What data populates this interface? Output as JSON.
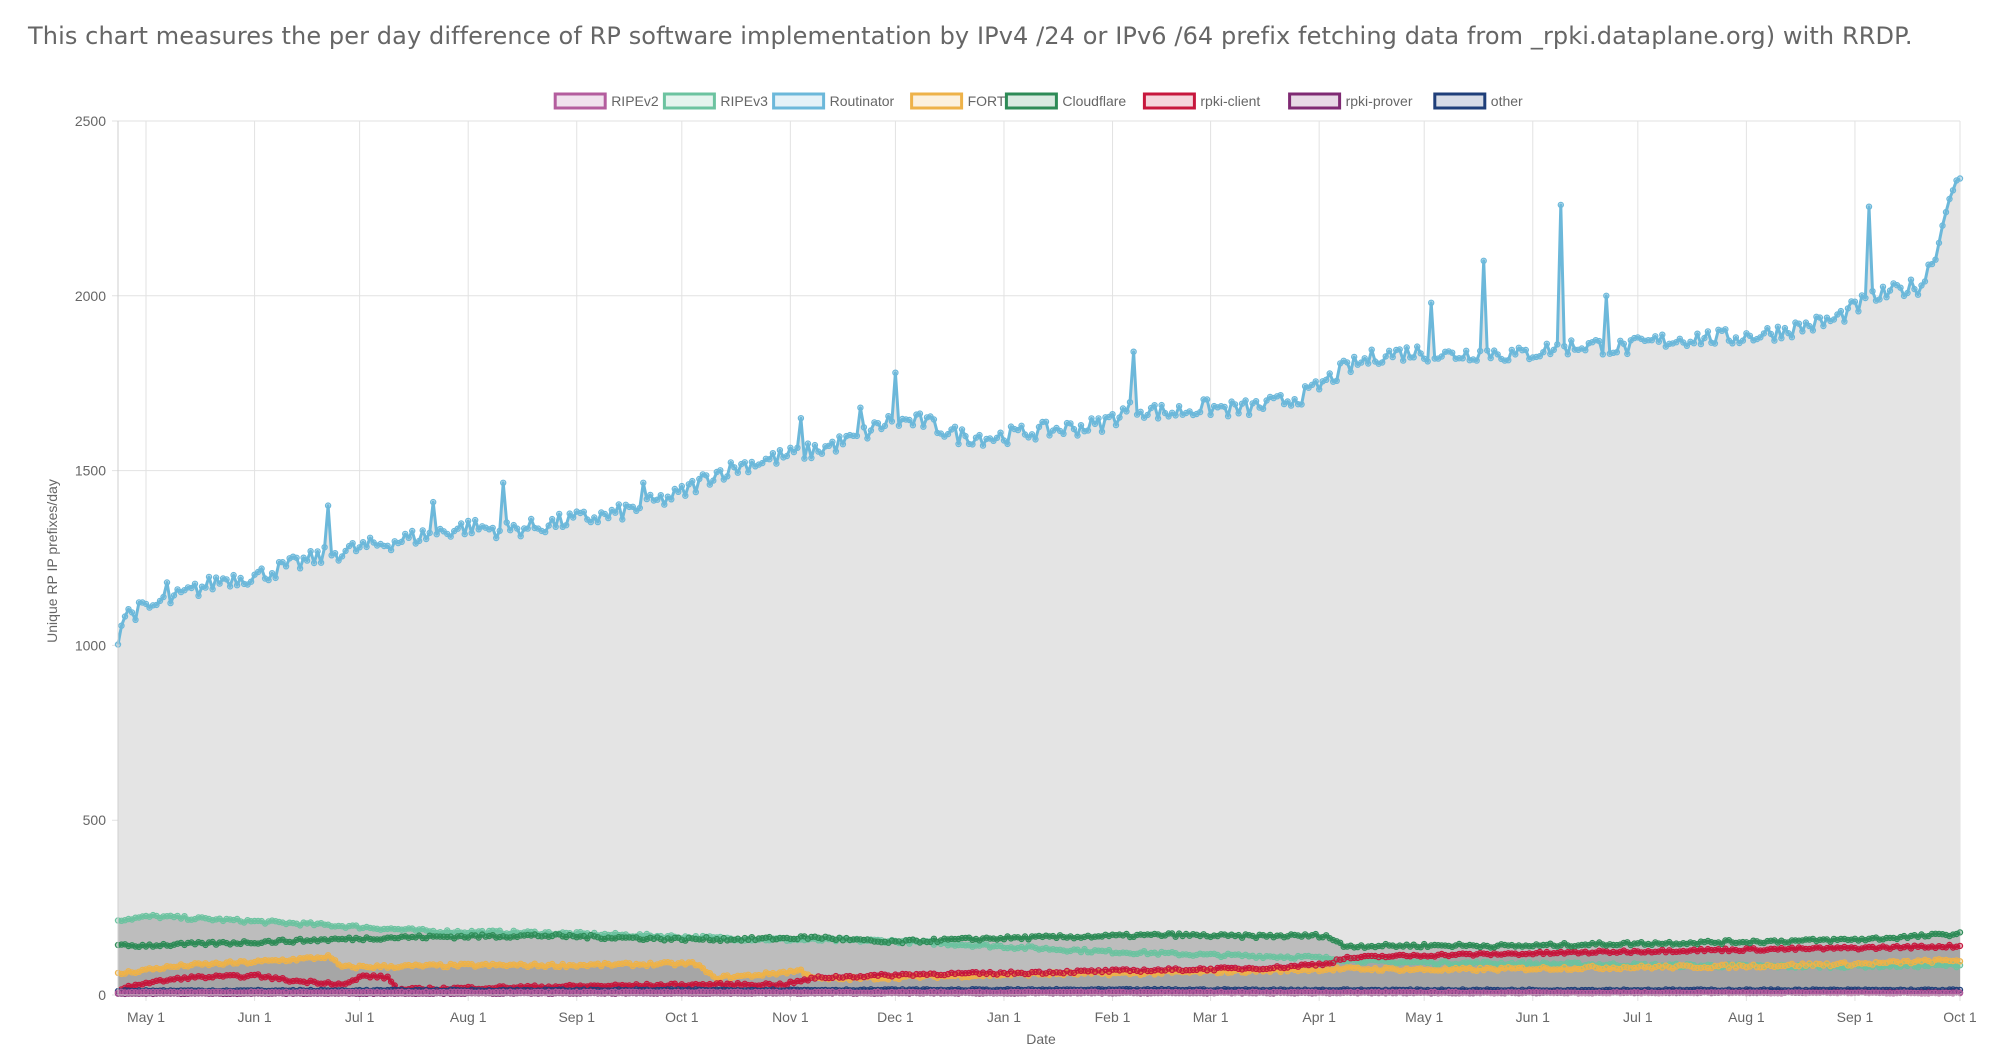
{
  "caption": "This chart measures the per day difference of RP software implementation by IPv4 /24 or IPv6 /64 prefix fetching data from _rpki.dataplane.org) with RRDP.",
  "chart_data": {
    "type": "area",
    "xlabel": "Date",
    "ylabel": "Unique RP IP prefixes/day",
    "ylim": [
      0,
      2500
    ],
    "yticks": [
      "0",
      "500",
      "1000",
      "1500",
      "2000",
      "2500"
    ],
    "xticks": [
      {
        "label": "May 1",
        "day": 8
      },
      {
        "label": "Jun 1",
        "day": 39
      },
      {
        "label": "Jul 1",
        "day": 69
      },
      {
        "label": "Aug 1",
        "day": 100
      },
      {
        "label": "Sep 1",
        "day": 131
      },
      {
        "label": "Oct 1",
        "day": 161
      },
      {
        "label": "Nov 1",
        "day": 192
      },
      {
        "label": "Dec 1",
        "day": 222
      },
      {
        "label": "Jan 1",
        "day": 253
      },
      {
        "label": "Feb 1",
        "day": 284
      },
      {
        "label": "Mar 1",
        "day": 312
      },
      {
        "label": "Apr 1",
        "day": 343
      },
      {
        "label": "May 1",
        "day": 373
      },
      {
        "label": "Jun 1",
        "day": 404
      },
      {
        "label": "Jul 1",
        "day": 434
      },
      {
        "label": "Aug 1",
        "day": 465
      },
      {
        "label": "Sep 1",
        "day": 496
      },
      {
        "label": "Oct 1",
        "day": 526
      }
    ],
    "x_day_range": [
      0,
      526
    ],
    "grid": true,
    "legend_position": "top-center",
    "area_fill_colors": [
      "#e4e4e4",
      "#bdbdbd",
      "#a6a6a6"
    ],
    "series": [
      {
        "name": "RIPEv2",
        "color": "#b45d9e",
        "keypoints": [
          [
            0,
            8
          ],
          [
            100,
            8
          ],
          [
            200,
            8
          ],
          [
            300,
            8
          ],
          [
            400,
            7
          ],
          [
            526,
            6
          ]
        ]
      },
      {
        "name": "RIPEv3",
        "color": "#6cc3a0",
        "keypoints": [
          [
            0,
            215
          ],
          [
            10,
            225
          ],
          [
            30,
            215
          ],
          [
            60,
            200
          ],
          [
            90,
            182
          ],
          [
            120,
            178
          ],
          [
            150,
            170
          ],
          [
            180,
            160
          ],
          [
            220,
            155
          ],
          [
            250,
            140
          ],
          [
            280,
            125
          ],
          [
            310,
            115
          ],
          [
            340,
            108
          ],
          [
            360,
            95
          ],
          [
            380,
            92
          ],
          [
            400,
            90
          ],
          [
            440,
            85
          ],
          [
            480,
            82
          ],
          [
            526,
            85
          ]
        ]
      },
      {
        "name": "Routinator",
        "color": "#6cb8da",
        "keypoints": [
          [
            0,
            1025
          ],
          [
            2,
            1090
          ],
          [
            10,
            1110
          ],
          [
            20,
            1150
          ],
          [
            30,
            1190
          ],
          [
            40,
            1200
          ],
          [
            50,
            1230
          ],
          [
            60,
            1260
          ],
          [
            70,
            1280
          ],
          [
            80,
            1300
          ],
          [
            90,
            1320
          ],
          [
            100,
            1340
          ],
          [
            110,
            1330
          ],
          [
            120,
            1340
          ],
          [
            130,
            1360
          ],
          [
            140,
            1370
          ],
          [
            150,
            1400
          ],
          [
            160,
            1430
          ],
          [
            170,
            1490
          ],
          [
            180,
            1520
          ],
          [
            190,
            1540
          ],
          [
            200,
            1560
          ],
          [
            210,
            1590
          ],
          [
            220,
            1640
          ],
          [
            230,
            1640
          ],
          [
            240,
            1600
          ],
          [
            250,
            1595
          ],
          [
            260,
            1610
          ],
          [
            270,
            1620
          ],
          [
            280,
            1630
          ],
          [
            290,
            1680
          ],
          [
            300,
            1665
          ],
          [
            310,
            1680
          ],
          [
            320,
            1675
          ],
          [
            330,
            1690
          ],
          [
            340,
            1720
          ],
          [
            350,
            1790
          ],
          [
            360,
            1830
          ],
          [
            370,
            1840
          ],
          [
            380,
            1830
          ],
          [
            390,
            1840
          ],
          [
            400,
            1830
          ],
          [
            410,
            1850
          ],
          [
            420,
            1860
          ],
          [
            430,
            1850
          ],
          [
            440,
            1870
          ],
          [
            450,
            1880
          ],
          [
            460,
            1880
          ],
          [
            470,
            1890
          ],
          [
            480,
            1910
          ],
          [
            490,
            1930
          ],
          [
            500,
            1990
          ],
          [
            510,
            2020
          ],
          [
            515,
            2030
          ],
          [
            520,
            2150
          ],
          [
            523,
            2300
          ],
          [
            526,
            2320
          ]
        ],
        "spikes": [
          [
            14,
            1180
          ],
          [
            60,
            1400
          ],
          [
            90,
            1410
          ],
          [
            110,
            1465
          ],
          [
            150,
            1465
          ],
          [
            195,
            1650
          ],
          [
            212,
            1680
          ],
          [
            222,
            1780
          ],
          [
            290,
            1840
          ],
          [
            375,
            1980
          ],
          [
            390,
            2100
          ],
          [
            412,
            2260
          ],
          [
            425,
            2000
          ],
          [
            500,
            2255
          ]
        ]
      },
      {
        "name": "FORT",
        "color": "#eeb249",
        "keypoints": [
          [
            0,
            60
          ],
          [
            10,
            75
          ],
          [
            20,
            85
          ],
          [
            40,
            95
          ],
          [
            55,
            105
          ],
          [
            60,
            110
          ],
          [
            64,
            80
          ],
          [
            80,
            82
          ],
          [
            100,
            85
          ],
          [
            130,
            85
          ],
          [
            165,
            90
          ],
          [
            170,
            50
          ],
          [
            180,
            55
          ],
          [
            195,
            70
          ],
          [
            200,
            45
          ],
          [
            220,
            50
          ],
          [
            260,
            60
          ],
          [
            290,
            62
          ],
          [
            320,
            68
          ],
          [
            350,
            75
          ],
          [
            380,
            72
          ],
          [
            420,
            78
          ],
          [
            460,
            82
          ],
          [
            500,
            90
          ],
          [
            526,
            100
          ]
        ]
      },
      {
        "name": "Cloudflare",
        "color": "#2e8b57",
        "keypoints": [
          [
            0,
            140
          ],
          [
            20,
            145
          ],
          [
            50,
            155
          ],
          [
            80,
            165
          ],
          [
            120,
            170
          ],
          [
            160,
            160
          ],
          [
            180,
            160
          ],
          [
            200,
            165
          ],
          [
            220,
            150
          ],
          [
            230,
            155
          ],
          [
            250,
            162
          ],
          [
            280,
            168
          ],
          [
            300,
            172
          ],
          [
            320,
            168
          ],
          [
            345,
            170
          ],
          [
            350,
            140
          ],
          [
            380,
            142
          ],
          [
            400,
            140
          ],
          [
            420,
            145
          ],
          [
            450,
            150
          ],
          [
            480,
            155
          ],
          [
            500,
            160
          ],
          [
            526,
            175
          ]
        ]
      },
      {
        "name": "rpki-client",
        "color": "#c7173d",
        "keypoints": [
          [
            0,
            10
          ],
          [
            5,
            30
          ],
          [
            20,
            50
          ],
          [
            40,
            55
          ],
          [
            50,
            40
          ],
          [
            60,
            35
          ],
          [
            65,
            30
          ],
          [
            70,
            55
          ],
          [
            77,
            50
          ],
          [
            80,
            15
          ],
          [
            100,
            20
          ],
          [
            130,
            25
          ],
          [
            170,
            30
          ],
          [
            190,
            30
          ],
          [
            200,
            50
          ],
          [
            230,
            60
          ],
          [
            250,
            62
          ],
          [
            280,
            68
          ],
          [
            300,
            72
          ],
          [
            330,
            78
          ],
          [
            345,
            90
          ],
          [
            350,
            105
          ],
          [
            360,
            110
          ],
          [
            380,
            115
          ],
          [
            400,
            118
          ],
          [
            420,
            122
          ],
          [
            450,
            128
          ],
          [
            480,
            132
          ],
          [
            500,
            135
          ],
          [
            526,
            140
          ]
        ]
      },
      {
        "name": "rpki-prover",
        "color": "#7f2a73",
        "keypoints": [
          [
            0,
            4
          ],
          [
            200,
            5
          ],
          [
            400,
            6
          ],
          [
            526,
            7
          ]
        ]
      },
      {
        "name": "other",
        "color": "#1f3f7a",
        "keypoints": [
          [
            0,
            12
          ],
          [
            150,
            14
          ],
          [
            300,
            15
          ],
          [
            360,
            14
          ],
          [
            526,
            14
          ]
        ]
      }
    ]
  }
}
